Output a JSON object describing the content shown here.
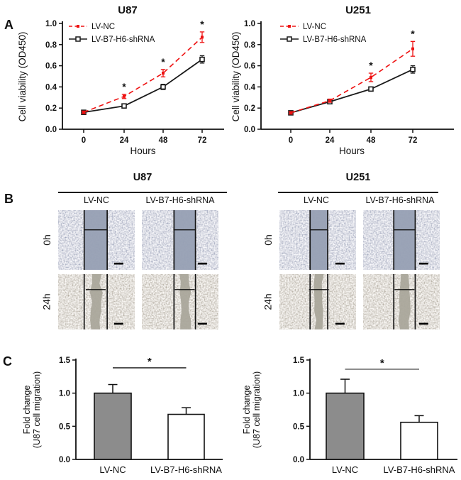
{
  "figure": {
    "panels": {
      "a": "A",
      "b": "B",
      "c": "C"
    },
    "colors": {
      "lv_nc_red": "#ee1111",
      "series_black": "#1a1a1a",
      "axis": "#111111",
      "bar_nc_fill": "#8c8c8c",
      "bar_sh_fill": "#ffffff"
    }
  },
  "chart_data": [
    {
      "id": "u87_viability",
      "type": "line",
      "title": "U87",
      "xlabel": "Hours",
      "ylabel": "Cell viability (OD450)",
      "x": [
        0,
        24,
        48,
        72
      ],
      "ylim": [
        0.0,
        1.0
      ],
      "yticks": [
        0.0,
        0.2,
        0.4,
        0.6,
        0.8,
        1.0
      ],
      "legend_position": "top-left-inside",
      "series": [
        {
          "name": "LV-NC",
          "color": "#ee1111",
          "style": "dashed",
          "marker": "filled-square",
          "values": [
            0.16,
            0.31,
            0.53,
            0.87
          ],
          "errors": [
            0.012,
            0.02,
            0.035,
            0.05
          ]
        },
        {
          "name": "LV-B7-H6-shRNA",
          "color": "#1a1a1a",
          "style": "solid",
          "marker": "open-square",
          "values": [
            0.16,
            0.22,
            0.4,
            0.66
          ],
          "errors": [
            0.012,
            0.012,
            0.025,
            0.035
          ]
        }
      ],
      "significance": {
        "symbol": "*",
        "color": "#ee1111",
        "at_x": [
          24,
          48,
          72
        ],
        "on_series": "LV-NC"
      }
    },
    {
      "id": "u251_viability",
      "type": "line",
      "title": "U251",
      "xlabel": "Hours",
      "ylabel": "Cell viability (OD450)",
      "x": [
        0,
        24,
        48,
        72
      ],
      "ylim": [
        0.0,
        1.0
      ],
      "yticks": [
        0.0,
        0.2,
        0.4,
        0.6,
        0.8,
        1.0
      ],
      "legend_position": "top-left-inside",
      "series": [
        {
          "name": "LV-NC",
          "color": "#ee1111",
          "style": "dashed",
          "marker": "filled-square",
          "values": [
            0.155,
            0.27,
            0.49,
            0.76
          ],
          "errors": [
            0.012,
            0.015,
            0.04,
            0.07
          ]
        },
        {
          "name": "LV-B7-H6-shRNA",
          "color": "#1a1a1a",
          "style": "solid",
          "marker": "open-square",
          "values": [
            0.155,
            0.26,
            0.38,
            0.565
          ],
          "errors": [
            0.012,
            0.015,
            0.018,
            0.035
          ]
        }
      ],
      "significance": {
        "symbol": "*",
        "color": "#ee1111",
        "at_x": [
          48,
          72
        ],
        "on_series": "LV-NC"
      }
    },
    {
      "id": "u87_migration",
      "type": "bar",
      "ylabel_lines": [
        "Fold change",
        "(U87 cell migration)"
      ],
      "categories": [
        "LV-NC",
        "LV-B7-H6-shRNA"
      ],
      "values": [
        1.0,
        0.68
      ],
      "errors": [
        0.13,
        0.1
      ],
      "ylim": [
        0.0,
        1.5
      ],
      "yticks": [
        0.0,
        0.5,
        1.0,
        1.5
      ],
      "bar_fills": [
        "#8c8c8c",
        "#ffffff"
      ],
      "significance": {
        "symbol": "*",
        "between": [
          "LV-NC",
          "LV-B7-H6-shRNA"
        ]
      }
    },
    {
      "id": "u251_migration",
      "type": "bar",
      "ylabel_lines": [
        "Fold change",
        "(U87 cell migration)"
      ],
      "categories": [
        "LV-NC",
        "LV-B7-H6-shRNA"
      ],
      "values": [
        1.0,
        0.56
      ],
      "errors": [
        0.21,
        0.1
      ],
      "ylim": [
        0.0,
        1.5
      ],
      "yticks": [
        0.0,
        0.5,
        1.0,
        1.5
      ],
      "bar_fills": [
        "#8c8c8c",
        "#ffffff"
      ],
      "significance": {
        "symbol": "*",
        "between": [
          "LV-NC",
          "LV-B7-H6-shRNA"
        ]
      }
    }
  ],
  "panel_b": {
    "groups": [
      {
        "title": "U87",
        "columns": [
          "LV-NC",
          "LV-B7-H6-shRNA"
        ],
        "row_labels": [
          "0h",
          "24h"
        ]
      },
      {
        "title": "U251",
        "columns": [
          "LV-NC",
          "LV-B7-H6-shRNA"
        ],
        "row_labels": [
          "0h",
          "24h"
        ]
      }
    ],
    "micrograph_colors": {
      "h0": {
        "speck": "#7e89a8",
        "veil": "#dde1ee",
        "scratch": "#97a0b4"
      },
      "h24": {
        "speck": "#968e7e",
        "veil": "#e8e0d0",
        "scratch": "#aaa69b"
      }
    }
  }
}
